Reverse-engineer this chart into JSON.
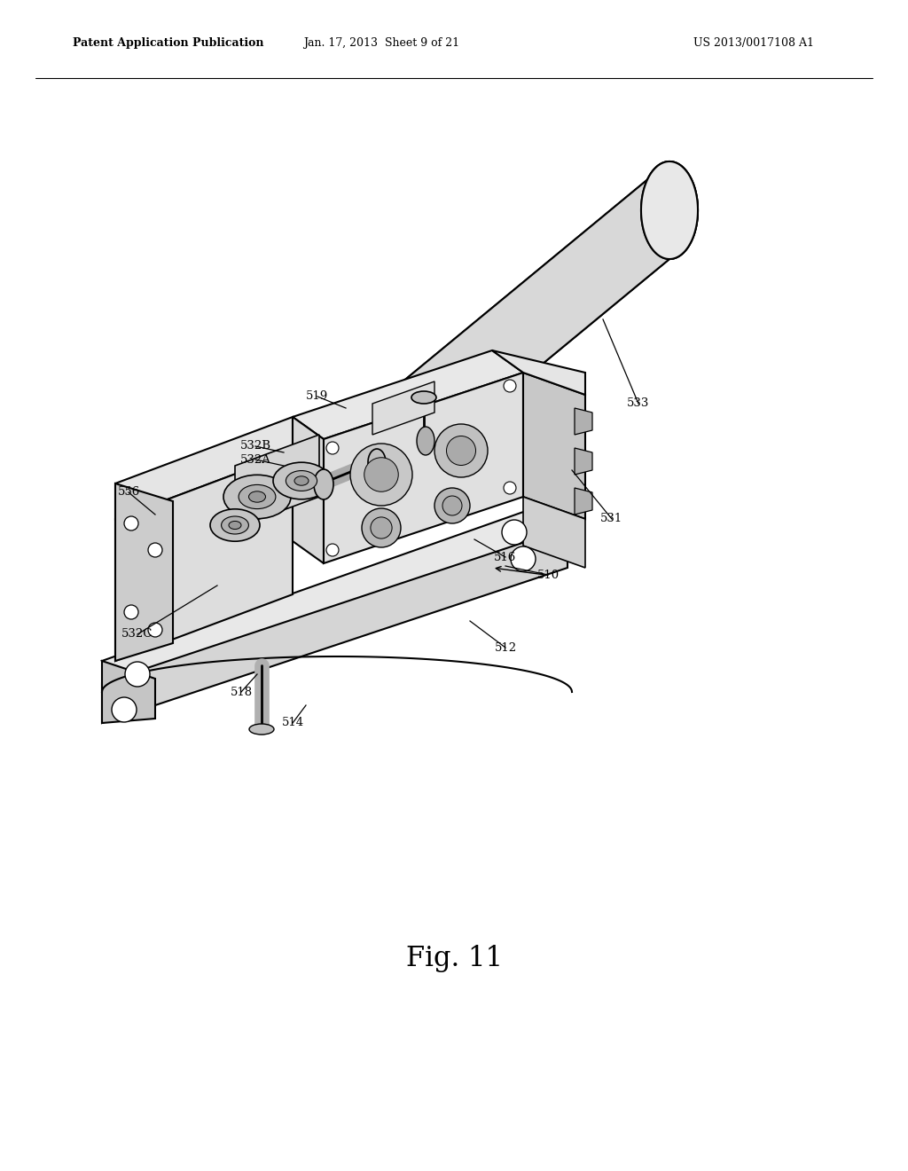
{
  "background_color": "#ffffff",
  "header_left": "Patent Application Publication",
  "header_center": "Jan. 17, 2013  Sheet 9 of 21",
  "header_right": "US 2013/0017108 A1",
  "figure_label": "Fig. 11",
  "header_fontsize": 10,
  "figure_label_fontsize": 20,
  "line_color": "#000000",
  "text_color": "#000000"
}
